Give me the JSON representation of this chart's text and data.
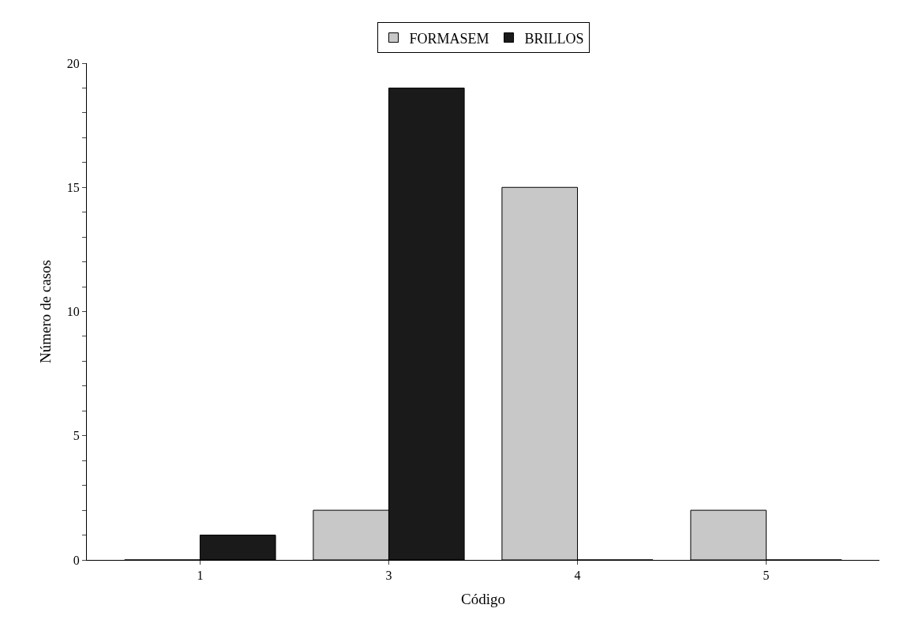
{
  "chart_data": {
    "type": "bar",
    "xlabel": "Código",
    "ylabel": "Número de casos",
    "categories": [
      "1",
      "3",
      "4",
      "5"
    ],
    "series": [
      {
        "name": "FORMASEM",
        "color": "#c8c8c8",
        "values": [
          0,
          2,
          15,
          2
        ]
      },
      {
        "name": "BRILLOS",
        "color": "#1a1a1a",
        "values": [
          1,
          19,
          0,
          0
        ]
      }
    ],
    "ylim": [
      0,
      20
    ],
    "yticks": [
      0,
      {
        "value": 1,
        "label": null
      },
      {
        "value": 2,
        "label": null
      },
      {
        "value": 3,
        "label": null
      },
      {
        "value": 4,
        "label": null
      },
      5,
      {
        "value": 6,
        "label": null
      },
      {
        "value": 7,
        "label": null
      },
      {
        "value": 8,
        "label": null
      },
      {
        "value": 9,
        "label": null
      },
      10,
      {
        "value": 11,
        "label": null
      },
      {
        "value": 12,
        "label": null
      },
      {
        "value": 13,
        "label": null
      },
      {
        "value": 14,
        "label": null
      },
      15,
      {
        "value": 16,
        "label": null
      },
      {
        "value": 17,
        "label": null
      },
      {
        "value": 18,
        "label": null
      },
      {
        "value": 19,
        "label": null
      },
      20
    ],
    "legend": "top"
  }
}
